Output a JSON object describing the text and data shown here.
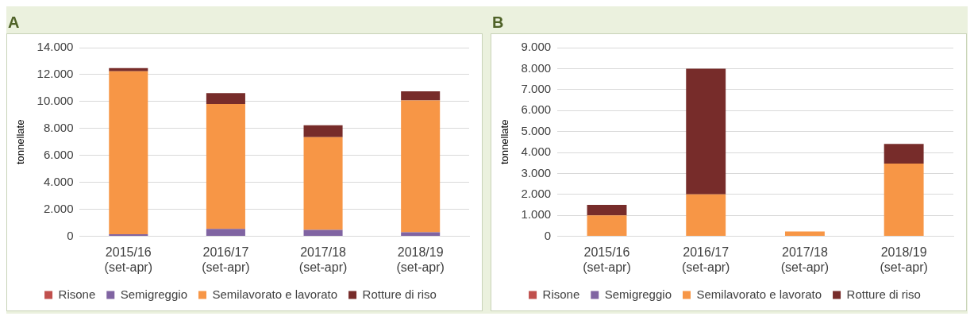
{
  "chart_data": [
    {
      "type": "bar",
      "title": "A",
      "ylabel": "tonnellate",
      "stacked": true,
      "legend": "bottom",
      "grid": "y",
      "categories": [
        "2015/16\n(set-apr)",
        "2016/17\n(set-apr)",
        "2017/18\n(set-apr)",
        "2018/19\n(set-apr)"
      ],
      "ylim": [
        0,
        14000
      ],
      "yticks": [
        {
          "value": 0,
          "label": "0"
        },
        {
          "value": 2000,
          "label": "2.000"
        },
        {
          "value": 4000,
          "label": "4.000"
        },
        {
          "value": 6000,
          "label": "6.000"
        },
        {
          "value": 8000,
          "label": "8.000"
        },
        {
          "value": 10000,
          "label": "10.000"
        },
        {
          "value": 12000,
          "label": "12.000"
        },
        {
          "value": 14000,
          "label": "14.000"
        }
      ],
      "series": [
        {
          "name": "Risone",
          "color": "#c0504d",
          "values": [
            0,
            0,
            0,
            0
          ]
        },
        {
          "name": "Semigreggio",
          "color": "#8064a2",
          "values": [
            150,
            550,
            480,
            300
          ]
        },
        {
          "name": "Semilavorato e lavorato",
          "color": "#f79646",
          "values": [
            12100,
            9260,
            6870,
            9780
          ]
        },
        {
          "name": "Rotture di riso",
          "color": "#772c2a",
          "values": [
            230,
            820,
            890,
            680
          ]
        }
      ]
    },
    {
      "type": "bar",
      "title": "B",
      "ylabel": "tonnellate",
      "stacked": true,
      "legend": "bottom",
      "grid": "y",
      "categories": [
        "2015/16\n(set-apr)",
        "2016/17\n(set-apr)",
        "2017/18\n(set-apr)",
        "2018/19\n(set-apr)"
      ],
      "ylim": [
        0,
        9000
      ],
      "yticks": [
        {
          "value": 0,
          "label": "0"
        },
        {
          "value": 1000,
          "label": "1.000"
        },
        {
          "value": 2000,
          "label": "2.000"
        },
        {
          "value": 3000,
          "label": "3.000"
        },
        {
          "value": 4000,
          "label": "4.000"
        },
        {
          "value": 5000,
          "label": "5.000"
        },
        {
          "value": 6000,
          "label": "6.000"
        },
        {
          "value": 7000,
          "label": "7.000"
        },
        {
          "value": 8000,
          "label": "8.000"
        },
        {
          "value": 9000,
          "label": "9.000"
        }
      ],
      "series": [
        {
          "name": "Risone",
          "color": "#c0504d",
          "values": [
            0,
            0,
            0,
            0
          ]
        },
        {
          "name": "Semigreggio",
          "color": "#8064a2",
          "values": [
            0,
            0,
            0,
            0
          ]
        },
        {
          "name": "Semilavorato e lavorato",
          "color": "#f79646",
          "values": [
            1000,
            2000,
            230,
            3470
          ]
        },
        {
          "name": "Rotture di riso",
          "color": "#772c2a",
          "values": [
            500,
            6000,
            0,
            940
          ]
        }
      ]
    }
  ]
}
